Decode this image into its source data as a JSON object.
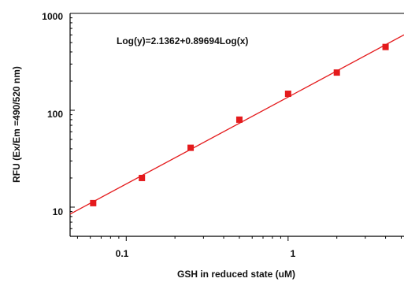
{
  "chart_data": {
    "type": "scatter",
    "title": "",
    "xlabel": "GSH in reduced state  (uM)",
    "ylabel": "RFU (Ex/Em =490/520 nm)",
    "xscale": "log",
    "yscale": "log",
    "xlim": [
      0.045,
      5.2
    ],
    "ylim": [
      5,
      1000
    ],
    "x_ticks": [
      0.1,
      1
    ],
    "x_tick_labels": [
      "0.1",
      "1"
    ],
    "y_ticks": [
      10,
      100,
      1000
    ],
    "y_tick_labels": [
      "10",
      "100",
      "1000"
    ],
    "grid": false,
    "legend": "none",
    "annotation": "Log(y)=2.1362+0.89694Log(x)",
    "series": [
      {
        "x": [
          0.0625,
          0.125,
          0.25,
          0.5,
          1,
          2,
          4
        ],
        "y": [
          11,
          20,
          41,
          80,
          148,
          245,
          450
        ],
        "marker": "square",
        "color": "#e41a1c"
      }
    ],
    "fit": {
      "intercept": 2.1362,
      "slope": 0.89694,
      "color": "#e41a1c"
    }
  }
}
